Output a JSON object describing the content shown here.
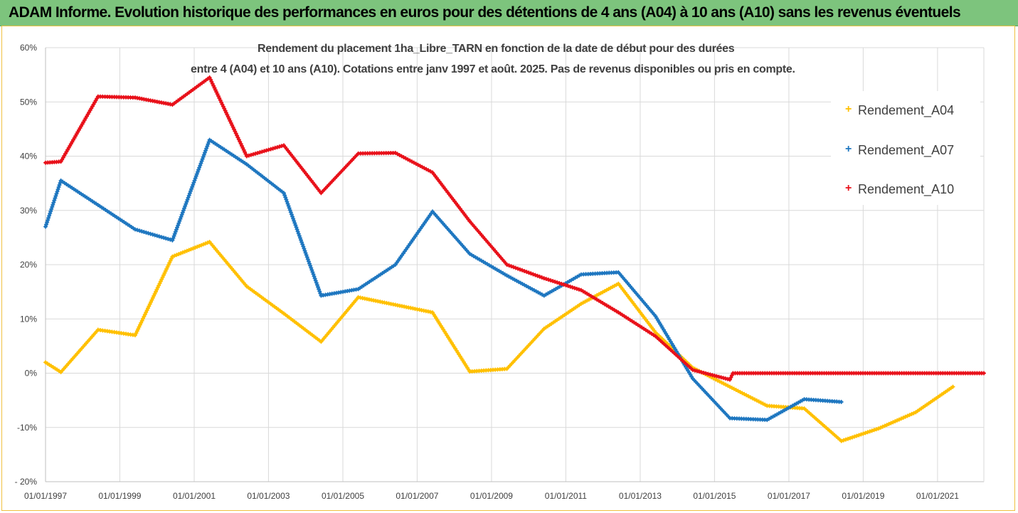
{
  "banner": {
    "title": "ADAM Informe. Evolution historique des performances en euros pour des détentions de 4 ans (A04) à 10 ans (A10) sans les revenus éventuels"
  },
  "colors": {
    "banner": "#7dc47d",
    "A04": "#ffc000",
    "A07": "#1f77c0",
    "A10": "#e8111a",
    "grid": "#d9d9d9",
    "text": "#404040"
  },
  "chart_data": {
    "type": "line",
    "title": "Rendement du placement 1ha_Libre_TARN en fonction de la date de début pour des durées",
    "subtitle": "entre 4 (A04) et 10 ans (A10). Cotations entre janv 1997 et août. 2025. Pas de revenus disponibles ou pris en compte.",
    "xlabel": "",
    "ylabel": "",
    "x_range": [
      "1997-01-01",
      "2022-04-01"
    ],
    "ylim": [
      -20,
      60
    ],
    "y_ticks": [
      -20,
      -10,
      0,
      10,
      20,
      30,
      40,
      50,
      60
    ],
    "y_tick_labels": [
      "- 20%",
      "-10%",
      "0%",
      "10%",
      "20%",
      "30%",
      "40%",
      "50%",
      "60%"
    ],
    "x_tick_dates": [
      "1997-01-01",
      "1999-01-01",
      "2001-01-01",
      "2003-01-01",
      "2005-01-01",
      "2007-01-01",
      "2009-01-01",
      "2011-01-01",
      "2013-01-01",
      "2015-01-01",
      "2017-01-01",
      "2019-01-01",
      "2021-01-01"
    ],
    "x_tick_labels": [
      "01/01/1997",
      "01/01/1999",
      "01/01/2001",
      "01/01/2003",
      "01/01/2005",
      "01/01/2007",
      "01/01/2009",
      "01/01/2011",
      "01/01/2013",
      "01/01/2015",
      "01/01/2017",
      "01/01/2019",
      "01/01/2021"
    ],
    "grid": true,
    "legend_position": "right",
    "series": [
      {
        "name": "Rendement_A04",
        "color": "#ffc000",
        "points": [
          [
            "1997-01-01",
            2
          ],
          [
            "1997-06-01",
            0.2
          ],
          [
            "1998-06-01",
            8
          ],
          [
            "1999-06-01",
            7
          ],
          [
            "2000-06-01",
            21.5
          ],
          [
            "2001-06-01",
            24.2
          ],
          [
            "2002-06-01",
            16
          ],
          [
            "2003-06-01",
            11
          ],
          [
            "2004-06-01",
            5.8
          ],
          [
            "2005-06-01",
            14
          ],
          [
            "2006-06-01",
            12.6
          ],
          [
            "2007-06-01",
            11.2
          ],
          [
            "2008-06-01",
            0.3
          ],
          [
            "2009-06-01",
            0.8
          ],
          [
            "2010-06-01",
            8.2
          ],
          [
            "2011-06-01",
            12.8
          ],
          [
            "2012-06-01",
            16.5
          ],
          [
            "2013-06-01",
            7.5
          ],
          [
            "2014-06-01",
            1
          ],
          [
            "2015-06-01",
            -2.5
          ],
          [
            "2016-06-01",
            -6
          ],
          [
            "2017-06-01",
            -6.5
          ],
          [
            "2018-06-01",
            -12.5
          ],
          [
            "2019-06-01",
            -10.2
          ],
          [
            "2020-06-01",
            -7.2
          ],
          [
            "2021-06-01",
            -2.5
          ]
        ]
      },
      {
        "name": "Rendement_A07",
        "color": "#1f77c0",
        "points": [
          [
            "1997-01-01",
            27
          ],
          [
            "1997-06-01",
            35.5
          ],
          [
            "1998-06-01",
            31
          ],
          [
            "1999-06-01",
            26.5
          ],
          [
            "2000-06-01",
            24.5
          ],
          [
            "2001-06-01",
            43
          ],
          [
            "2002-06-01",
            38.5
          ],
          [
            "2003-06-01",
            33.2
          ],
          [
            "2004-06-01",
            14.3
          ],
          [
            "2005-06-01",
            15.5
          ],
          [
            "2006-06-01",
            20
          ],
          [
            "2007-06-01",
            29.8
          ],
          [
            "2008-06-01",
            22
          ],
          [
            "2009-06-01",
            18
          ],
          [
            "2010-06-01",
            14.3
          ],
          [
            "2011-06-01",
            18.2
          ],
          [
            "2012-06-01",
            18.6
          ],
          [
            "2013-06-01",
            10.5
          ],
          [
            "2014-06-01",
            -1
          ],
          [
            "2015-06-01",
            -8.3
          ],
          [
            "2016-06-01",
            -8.6
          ],
          [
            "2017-06-01",
            -4.8
          ],
          [
            "2018-06-01",
            -5.3
          ]
        ]
      },
      {
        "name": "Rendement_A10",
        "color": "#e8111a",
        "points": [
          [
            "1997-01-01",
            38.8
          ],
          [
            "1997-06-01",
            39
          ],
          [
            "1998-06-01",
            51
          ],
          [
            "1999-06-01",
            50.8
          ],
          [
            "2000-06-01",
            49.5
          ],
          [
            "2001-06-01",
            54.5
          ],
          [
            "2002-06-01",
            40
          ],
          [
            "2003-06-01",
            42
          ],
          [
            "2004-06-01",
            33.2
          ],
          [
            "2005-06-01",
            40.5
          ],
          [
            "2006-06-01",
            40.6
          ],
          [
            "2007-06-01",
            37
          ],
          [
            "2008-06-01",
            28
          ],
          [
            "2009-06-01",
            20
          ],
          [
            "2010-06-01",
            17.5
          ],
          [
            "2011-06-01",
            15.3
          ],
          [
            "2012-06-01",
            11.2
          ],
          [
            "2013-06-01",
            6.8
          ],
          [
            "2014-06-01",
            0.6
          ],
          [
            "2015-06-01",
            -1.2
          ],
          [
            "2015-07-01",
            0
          ],
          [
            "2022-04-01",
            0
          ]
        ]
      }
    ]
  }
}
